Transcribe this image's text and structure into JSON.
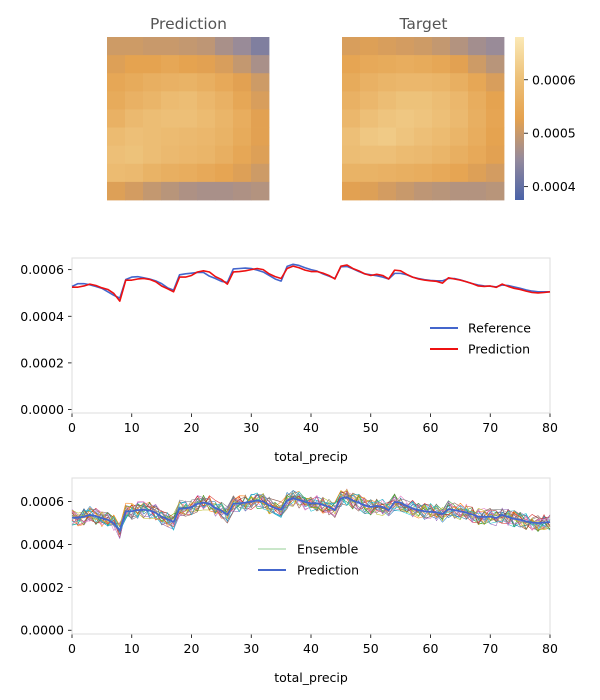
{
  "chart_data": [
    {
      "type": "heatmap",
      "title": "Prediction",
      "rows": 9,
      "cols": 9,
      "values": [
        [
          0.000505,
          0.000505,
          0.0005,
          0.0005,
          0.000495,
          0.00049,
          0.00047,
          0.000455,
          0.00043
        ],
        [
          0.00052,
          0.00053,
          0.00053,
          0.00054,
          0.00053,
          0.000525,
          0.000515,
          0.000495,
          0.00047
        ],
        [
          0.00054,
          0.00055,
          0.00056,
          0.000565,
          0.00057,
          0.00056,
          0.000545,
          0.000525,
          0.000505
        ],
        [
          0.00055,
          0.000565,
          0.000575,
          0.00059,
          0.000595,
          0.00058,
          0.000565,
          0.00054,
          0.000515
        ],
        [
          0.000565,
          0.000585,
          0.000595,
          0.0006,
          0.0006,
          0.00059,
          0.000575,
          0.000555,
          0.000525
        ],
        [
          0.00059,
          0.0006,
          0.000595,
          0.00059,
          0.000585,
          0.00058,
          0.00057,
          0.00055,
          0.000525
        ],
        [
          0.0006,
          0.000605,
          0.000595,
          0.000585,
          0.00058,
          0.000575,
          0.00056,
          0.00054,
          0.00052
        ],
        [
          0.00059,
          0.000585,
          0.00057,
          0.00056,
          0.000555,
          0.000545,
          0.000535,
          0.00052,
          0.000505
        ],
        [
          0.00052,
          0.00051,
          0.000495,
          0.000485,
          0.000475,
          0.00047,
          0.00047,
          0.000475,
          0.00048
        ]
      ]
    },
    {
      "type": "heatmap",
      "title": "Target",
      "rows": 9,
      "cols": 9,
      "values": [
        [
          0.000515,
          0.00052,
          0.000515,
          0.00051,
          0.000505,
          0.000495,
          0.00048,
          0.000465,
          0.000455
        ],
        [
          0.000535,
          0.000545,
          0.00055,
          0.000555,
          0.00055,
          0.00054,
          0.000525,
          0.000505,
          0.000485
        ],
        [
          0.00055,
          0.000565,
          0.000575,
          0.00058,
          0.00058,
          0.000575,
          0.00056,
          0.00054,
          0.000515
        ],
        [
          0.000565,
          0.00058,
          0.000595,
          0.000605,
          0.000605,
          0.000595,
          0.00058,
          0.000555,
          0.00053
        ],
        [
          0.00058,
          0.0006,
          0.00061,
          0.000615,
          0.00061,
          0.0006,
          0.000585,
          0.00056,
          0.000535
        ],
        [
          0.0006,
          0.000615,
          0.00062,
          0.00061,
          0.0006,
          0.00059,
          0.000575,
          0.000555,
          0.00053
        ],
        [
          0.000595,
          0.0006,
          0.0006,
          0.00059,
          0.000585,
          0.000575,
          0.00056,
          0.000545,
          0.000525
        ],
        [
          0.00057,
          0.00057,
          0.000565,
          0.00056,
          0.000555,
          0.000545,
          0.000535,
          0.00052,
          0.00051
        ],
        [
          0.000525,
          0.00052,
          0.00051,
          0.0005,
          0.00049,
          0.000485,
          0.00048,
          0.00048,
          0.000485
        ]
      ],
      "colorbar": {
        "min": 0.000375,
        "max": 0.00068,
        "ticks": [
          0.0004,
          0.0005,
          0.0006
        ],
        "tick_labels": [
          "0.0004",
          "0.0005",
          "0.0006"
        ],
        "colormap": [
          "#4a63a8",
          "#958a9c",
          "#e5a24f",
          "#edc179",
          "#fbe9b6"
        ]
      }
    },
    {
      "type": "line",
      "xlabel": "total_precip",
      "xlim": [
        0,
        80
      ],
      "ylim": [
        -1.5e-05,
        0.00065
      ],
      "x_ticks": [
        0,
        10,
        20,
        30,
        40,
        50,
        60,
        70,
        80
      ],
      "y_ticks": [
        0,
        0.0002,
        0.0004,
        0.0006
      ],
      "y_tick_labels": [
        "0.0000",
        "0.0002",
        "0.0004",
        "0.0006"
      ],
      "legend_position": "center-right",
      "x": [
        0,
        1,
        2,
        3,
        4,
        5,
        6,
        7,
        8,
        9,
        10,
        11,
        12,
        13,
        14,
        15,
        16,
        17,
        18,
        19,
        20,
        21,
        22,
        23,
        24,
        25,
        26,
        27,
        28,
        29,
        30,
        31,
        32,
        33,
        34,
        35,
        36,
        37,
        38,
        39,
        40,
        41,
        42,
        43,
        44,
        45,
        46,
        47,
        48,
        49,
        50,
        51,
        52,
        53,
        54,
        55,
        56,
        57,
        58,
        59,
        60,
        61,
        62,
        63,
        64,
        65,
        66,
        67,
        68,
        69,
        70,
        71,
        72,
        73,
        74,
        75,
        76,
        77,
        78,
        79,
        80
      ],
      "series": [
        {
          "name": "Reference",
          "color": "#4466cc",
          "values": [
            0.000528,
            0.00054,
            0.00054,
            0.000535,
            0.000528,
            0.00052,
            0.000505,
            0.00049,
            0.000478,
            0.000558,
            0.000568,
            0.00057,
            0.000565,
            0.00056,
            0.000552,
            0.00054,
            0.000522,
            0.000512,
            0.000578,
            0.000582,
            0.000585,
            0.000588,
            0.000588,
            0.000572,
            0.000562,
            0.00055,
            0.000545,
            0.000603,
            0.000605,
            0.000607,
            0.000605,
            0.000598,
            0.00059,
            0.000575,
            0.00056,
            0.000551,
            0.000614,
            0.000623,
            0.000618,
            0.000608,
            0.0006,
            0.000594,
            0.000582,
            0.000572,
            0.000562,
            0.000612,
            0.000614,
            0.000604,
            0.000592,
            0.000582,
            0.000578,
            0.000574,
            0.000568,
            0.00056,
            0.000584,
            0.000584,
            0.000578,
            0.000568,
            0.000562,
            0.000557,
            0.000554,
            0.000552,
            0.000552,
            0.000562,
            0.000562,
            0.000556,
            0.000548,
            0.00054,
            0.000534,
            0.00053,
            0.000529,
            0.000526,
            0.000534,
            0.000532,
            0.000526,
            0.00052,
            0.000513,
            0.000508,
            0.000505,
            0.000505,
            0.000505
          ]
        },
        {
          "name": "Prediction",
          "color": "#ee1111",
          "values": [
            0.000525,
            0.000525,
            0.00053,
            0.000538,
            0.000532,
            0.000522,
            0.000515,
            0.000498,
            0.000465,
            0.000555,
            0.000555,
            0.00056,
            0.000562,
            0.000558,
            0.000548,
            0.00053,
            0.000518,
            0.000505,
            0.000568,
            0.000568,
            0.000575,
            0.00059,
            0.000595,
            0.00059,
            0.00057,
            0.000558,
            0.000538,
            0.00059,
            0.000592,
            0.000595,
            0.0006,
            0.000605,
            0.0006,
            0.000582,
            0.00057,
            0.000562,
            0.000605,
            0.000615,
            0.000608,
            0.000598,
            0.000592,
            0.000592,
            0.000585,
            0.000575,
            0.00056,
            0.000615,
            0.00062,
            0.000605,
            0.000595,
            0.000582,
            0.000575,
            0.00058,
            0.000575,
            0.00056,
            0.000598,
            0.000595,
            0.00058,
            0.000568,
            0.00056,
            0.000555,
            0.000552,
            0.00055,
            0.000542,
            0.000565,
            0.00056,
            0.000555,
            0.000548,
            0.00054,
            0.00053,
            0.000528,
            0.00053,
            0.000524,
            0.000538,
            0.000528,
            0.00052,
            0.000515,
            0.000508,
            0.000502,
            0.0005,
            0.000502,
            0.000505
          ]
        }
      ]
    },
    {
      "type": "line",
      "xlabel": "total_precip",
      "xlim": [
        0,
        80
      ],
      "ylim": [
        -1.75e-05,
        0.00071
      ],
      "x_ticks": [
        0,
        10,
        20,
        30,
        40,
        50,
        60,
        70,
        80
      ],
      "y_ticks": [
        0,
        0.0002,
        0.0004,
        0.0006
      ],
      "y_tick_labels": [
        "0.0000",
        "0.0002",
        "0.0004",
        "0.0006"
      ],
      "legend_position": "center",
      "ensemble_member_count": 20,
      "ensemble_spread": 4e-05,
      "ensemble_colors": [
        "#1f77b4",
        "#ff7f0e",
        "#2ca02c",
        "#d62728",
        "#9467bd",
        "#8c564b",
        "#e377c2",
        "#7f7f7f",
        "#bcbd22",
        "#17becf"
      ],
      "series": [
        {
          "name": "Ensemble",
          "color": "#2ca02c"
        },
        {
          "name": "Prediction",
          "color": "#4466cc",
          "values": [
            0.000525,
            0.000525,
            0.00053,
            0.000538,
            0.000532,
            0.000522,
            0.000515,
            0.000498,
            0.000465,
            0.000555,
            0.000555,
            0.00056,
            0.000562,
            0.000558,
            0.000548,
            0.00053,
            0.000518,
            0.000505,
            0.000568,
            0.000568,
            0.000575,
            0.00059,
            0.000595,
            0.00059,
            0.00057,
            0.000558,
            0.000538,
            0.00059,
            0.000592,
            0.000595,
            0.0006,
            0.000605,
            0.0006,
            0.000582,
            0.00057,
            0.000562,
            0.000605,
            0.000615,
            0.000608,
            0.000598,
            0.000592,
            0.000592,
            0.000585,
            0.000575,
            0.00056,
            0.000615,
            0.00062,
            0.000605,
            0.000595,
            0.000582,
            0.000575,
            0.00058,
            0.000575,
            0.00056,
            0.000598,
            0.000595,
            0.00058,
            0.000568,
            0.00056,
            0.000555,
            0.000552,
            0.00055,
            0.000542,
            0.000565,
            0.00056,
            0.000555,
            0.000548,
            0.00054,
            0.00053,
            0.000528,
            0.00053,
            0.000524,
            0.000538,
            0.000528,
            0.00052,
            0.000515,
            0.000508,
            0.000502,
            0.0005,
            0.000502,
            0.000505
          ]
        }
      ]
    }
  ]
}
